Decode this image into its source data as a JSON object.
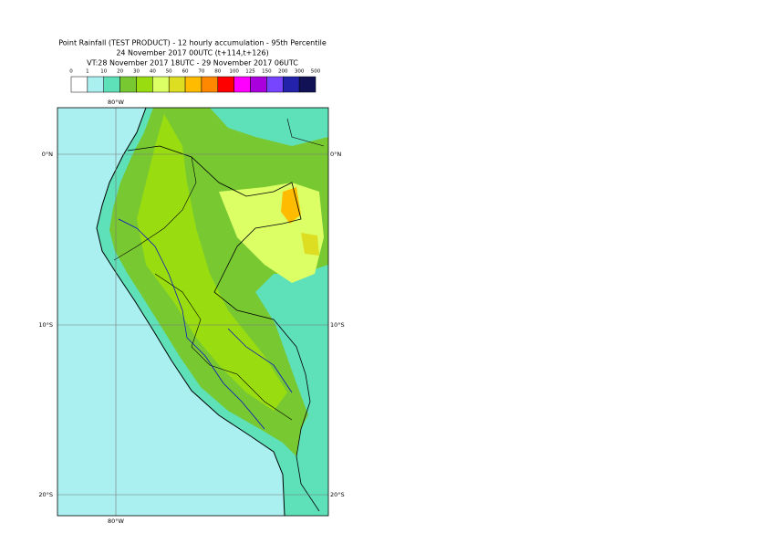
{
  "header": {
    "lines": [
      "Point Rainfall (TEST PRODUCT) - 12 hourly accumulation - 95th Percentile",
      "24 November 2017 00UTC (t+114,t+126)",
      "VT:28 November 2017 18UTC - 29 November 2017 06UTC"
    ]
  },
  "legend": {
    "labels": [
      "0",
      "1",
      "10",
      "20",
      "30",
      "40",
      "50",
      "60",
      "70",
      "80",
      "100",
      "125",
      "150",
      "200",
      "300",
      "500"
    ],
    "colors": [
      "#ffffff",
      "#aaf0f0",
      "#5ee0b8",
      "#78c832",
      "#99dd10",
      "#ddff66",
      "#dddd22",
      "#ffbb00",
      "#ff8800",
      "#ff0000",
      "#ff00ff",
      "#aa00dd",
      "#7744ff",
      "#2222aa",
      "#111155"
    ]
  },
  "map": {
    "top_labels": [
      "80°W"
    ],
    "bottom_labels": [
      "80°W"
    ],
    "left_labels": [
      "0°N",
      "10°S",
      "20°S"
    ],
    "right_labels": [
      "0°N",
      "10°S",
      "20°S"
    ]
  }
}
